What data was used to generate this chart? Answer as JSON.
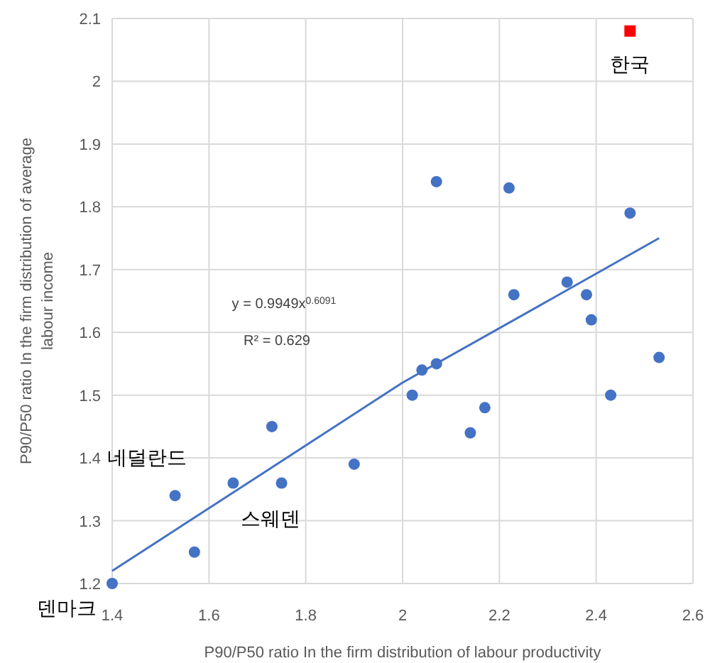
{
  "chart_data": {
    "type": "scatter",
    "xlabel": "P90/P50 ratio In the firm distribution of labour productivity",
    "ylabel": "P90/P50 ratio In the firm distribution of average labour income",
    "xlim": [
      1.4,
      2.6
    ],
    "xticks": [
      1.4,
      1.6,
      1.8,
      2,
      2.2,
      2.4,
      2.6
    ],
    "ylim": [
      1.2,
      2.1
    ],
    "yticks": [
      1.2,
      1.3,
      1.4,
      1.5,
      1.6,
      1.7,
      1.8,
      1.9,
      2,
      2.1
    ],
    "grid": true,
    "series": [
      {
        "marker": "circle",
        "color": "#4472c4",
        "x": [
          1.4,
          1.53,
          1.57,
          1.65,
          1.73,
          1.75,
          1.9,
          2.02,
          2.04,
          2.07,
          2.07,
          2.14,
          2.17,
          2.22,
          2.23,
          2.34,
          2.38,
          2.39,
          2.43,
          2.47,
          2.53
        ],
        "values": [
          1.2,
          1.34,
          1.25,
          1.36,
          1.45,
          1.36,
          1.39,
          1.5,
          1.54,
          1.55,
          1.84,
          1.44,
          1.48,
          1.83,
          1.66,
          1.68,
          1.66,
          1.62,
          1.5,
          1.79,
          1.56
        ]
      },
      {
        "type": "scatter",
        "marker": "square",
        "color": "#ff0000",
        "x": [
          2.47
        ],
        "values": [
          2.08
        ]
      },
      {
        "type": "line",
        "color": "#4472c4",
        "x": [
          1.4,
          1.7,
          2.0,
          2.3,
          2.53
        ],
        "values": [
          1.22,
          1.37,
          1.52,
          1.65,
          1.75
        ]
      }
    ],
    "annotations": [
      {
        "text": "한국",
        "x": 2.47,
        "y": 2.08
      },
      {
        "text": "네덜란드",
        "x": 1.53,
        "y": 1.34
      },
      {
        "text": "스웨덴",
        "x": 1.75,
        "y": 1.36
      },
      {
        "text": "덴마크",
        "x": 1.4,
        "y": 1.2
      },
      "y = 0.9949x$^{0.6091}$",
      "R² = 0.629"
    ]
  }
}
